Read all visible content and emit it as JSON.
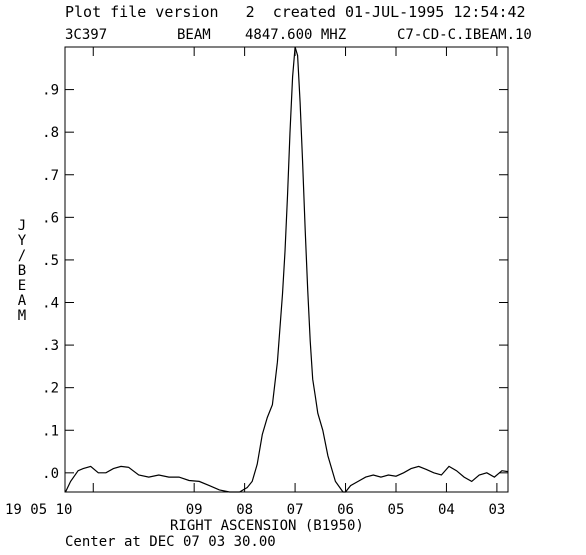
{
  "header": {
    "line1": "Plot file version   2  created 01-JUL-1995 12:54:42",
    "source": "3C397",
    "kind": "BEAM",
    "freq": "4847.600 MHZ",
    "file": "C7-CD-C.IBEAM.10"
  },
  "chart_data": {
    "type": "line",
    "xlabel": "RIGHT ASCENSION (B1950)",
    "ylabel": [
      "J",
      "Y",
      "/",
      "B",
      "E",
      "A",
      "M"
    ],
    "footer": "Center at DEC 07 03 30.00",
    "xlim": [
      11.56,
      2.78
    ],
    "ylim": [
      -0.045,
      1.0
    ],
    "x_ticks": [
      {
        "value": 11.0,
        "label": "19 05 10"
      },
      {
        "value": 9.0,
        "label": "09"
      },
      {
        "value": 8.0,
        "label": "08"
      },
      {
        "value": 7.0,
        "label": "07"
      },
      {
        "value": 6.0,
        "label": "06"
      },
      {
        "value": 5.0,
        "label": "05"
      },
      {
        "value": 4.0,
        "label": "04"
      },
      {
        "value": 3.0,
        "label": "03"
      }
    ],
    "y_ticks": [
      {
        "value": 0.0,
        "label": ".0"
      },
      {
        "value": 0.1,
        "label": ".1"
      },
      {
        "value": 0.2,
        "label": ".2"
      },
      {
        "value": 0.3,
        "label": ".3"
      },
      {
        "value": 0.4,
        "label": ".4"
      },
      {
        "value": 0.5,
        "label": ".5"
      },
      {
        "value": 0.6,
        "label": ".6"
      },
      {
        "value": 0.7,
        "label": ".7"
      },
      {
        "value": 0.8,
        "label": ".8"
      },
      {
        "value": 0.9,
        "label": ".9"
      }
    ],
    "series": [
      {
        "x": [
          11.55,
          11.45,
          11.3,
          11.2,
          11.05,
          10.9,
          10.75,
          10.6,
          10.45,
          10.3,
          10.1,
          9.9,
          9.7,
          9.5,
          9.3,
          9.1,
          8.9,
          8.7,
          8.5,
          8.3,
          8.1,
          8.0,
          7.95,
          7.85,
          7.75,
          7.65,
          7.55,
          7.45,
          7.35,
          7.25,
          7.2,
          7.15,
          7.1,
          7.05,
          7.0,
          6.95,
          6.9,
          6.85,
          6.8,
          6.75,
          6.7,
          6.65,
          6.6,
          6.55,
          6.45,
          6.35,
          6.2,
          6.05,
          6.0,
          5.9,
          5.75,
          5.6,
          5.45,
          5.3,
          5.15,
          5.0,
          4.85,
          4.7,
          4.55,
          4.4,
          4.25,
          4.1,
          3.95,
          3.8,
          3.65,
          3.5,
          3.35,
          3.2,
          3.05,
          2.9,
          2.78
        ],
        "y": [
          -0.045,
          -0.02,
          0.005,
          0.01,
          0.015,
          0.0,
          0.0,
          0.01,
          0.015,
          0.013,
          -0.005,
          -0.01,
          -0.005,
          -0.01,
          -0.01,
          -0.018,
          -0.02,
          -0.03,
          -0.04,
          -0.045,
          -0.045,
          -0.038,
          -0.035,
          -0.02,
          0.02,
          0.09,
          0.13,
          0.16,
          0.26,
          0.42,
          0.52,
          0.65,
          0.8,
          0.93,
          1.0,
          0.98,
          0.87,
          0.73,
          0.57,
          0.43,
          0.31,
          0.22,
          0.18,
          0.14,
          0.1,
          0.04,
          -0.02,
          -0.045,
          -0.045,
          -0.03,
          -0.02,
          -0.01,
          -0.005,
          -0.01,
          -0.005,
          -0.008,
          0.0,
          0.01,
          0.015,
          0.008,
          0.0,
          -0.005,
          0.015,
          0.005,
          -0.01,
          -0.02,
          -0.005,
          0.0,
          -0.01,
          0.005,
          0.003
        ]
      }
    ]
  }
}
